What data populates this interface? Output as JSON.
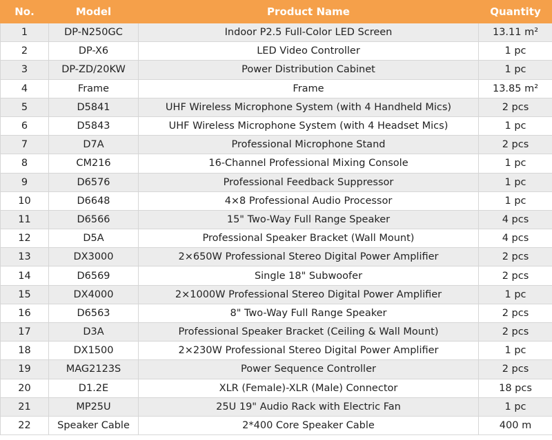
{
  "table": {
    "header": [
      "No.",
      "Model",
      "Product Name",
      "Quantity"
    ],
    "rows": [
      [
        "1",
        "DP-N250GC",
        "Indoor P2.5 Full-Color LED Screen",
        "13.11 m²"
      ],
      [
        "2",
        "DP-X6",
        "LED Video Controller",
        "1 pc"
      ],
      [
        "3",
        "DP-ZD/20KW",
        "Power Distribution Cabinet",
        "1 pc"
      ],
      [
        "4",
        "Frame",
        "Frame",
        "13.85 m²"
      ],
      [
        "5",
        "D5841",
        "UHF Wireless Microphone System (with 4 Handheld Mics)",
        "2 pcs"
      ],
      [
        "6",
        "D5843",
        "UHF Wireless Microphone System (with 4 Headset Mics)",
        "1 pc"
      ],
      [
        "7",
        "D7A",
        "Professional Microphone Stand",
        "2 pcs"
      ],
      [
        "8",
        "CM216",
        "16-Channel Professional Mixing Console",
        "1 pc"
      ],
      [
        "9",
        "D6576",
        "Professional Feedback Suppressor",
        "1 pc"
      ],
      [
        "10",
        "D6648",
        "4×8 Professional Audio Processor",
        "1 pc"
      ],
      [
        "11",
        "D6566",
        "15\" Two-Way Full Range Speaker",
        "4 pcs"
      ],
      [
        "12",
        "D5A",
        "Professional Speaker Bracket (Wall Mount)",
        "4 pcs"
      ],
      [
        "13",
        "DX3000",
        "2×650W Professional Stereo Digital Power Amplifier",
        "2 pcs"
      ],
      [
        "14",
        "D6569",
        "Single 18\" Subwoofer",
        "2 pcs"
      ],
      [
        "15",
        "DX4000",
        "2×1000W Professional Stereo Digital Power Amplifier",
        "1 pc"
      ],
      [
        "16",
        "D6563",
        "8\" Two-Way Full Range Speaker",
        "2 pcs"
      ],
      [
        "17",
        "D3A",
        "Professional Speaker Bracket (Ceiling & Wall Mount)",
        "2 pcs"
      ],
      [
        "18",
        "DX1500",
        "2×230W Professional Stereo Digital Power Amplifier",
        "1 pc"
      ],
      [
        "19",
        "MAG2123S",
        "Power Sequence Controller",
        "2 pcs"
      ],
      [
        "20",
        "D1.2E",
        "XLR (Female)-XLR (Male) Connector",
        "18 pcs"
      ],
      [
        "21",
        "MP25U",
        "25U 19\" Audio Rack with Electric Fan",
        "1 pc"
      ],
      [
        "22",
        "Speaker Cable",
        "2*400 Core Speaker Cable",
        "400 m"
      ]
    ]
  }
}
